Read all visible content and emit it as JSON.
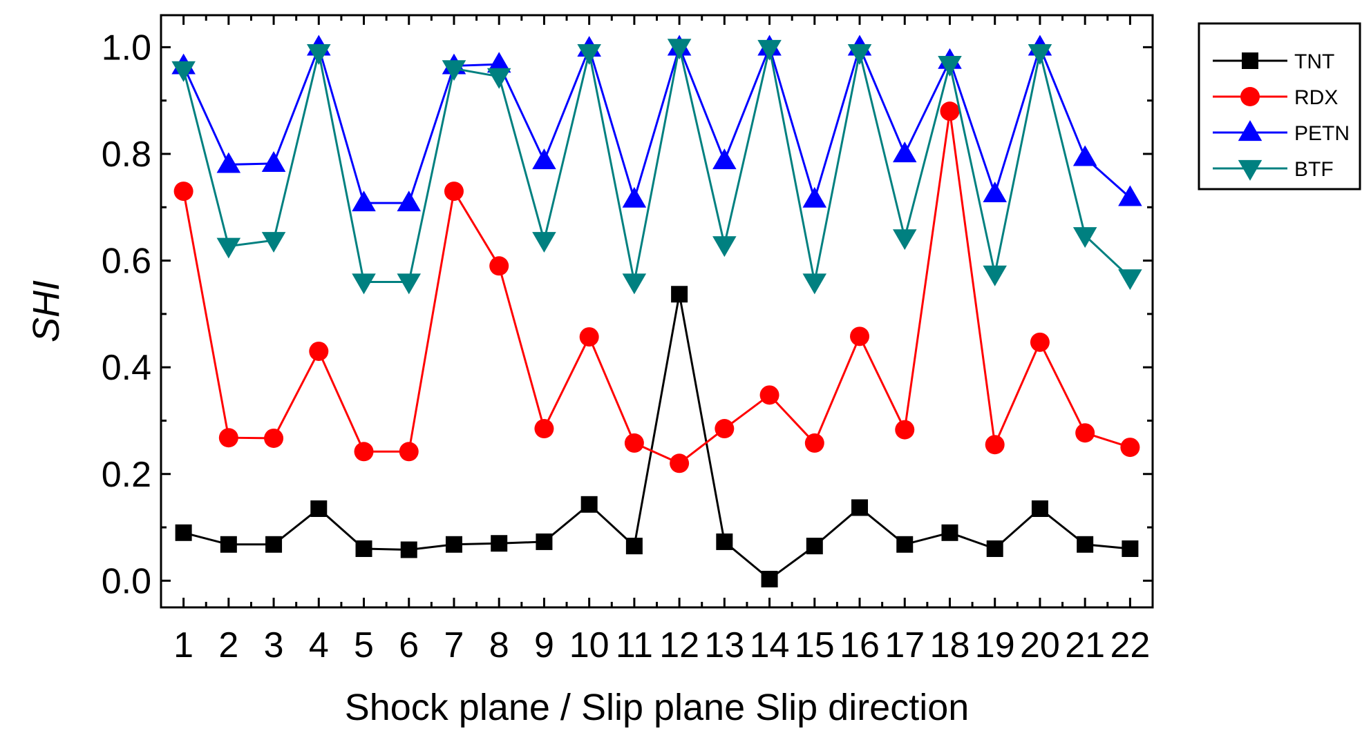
{
  "chart_data": {
    "type": "line",
    "xlabel": "Shock plane / Slip plane Slip direction",
    "ylabel": "SHI",
    "x": [
      1,
      2,
      3,
      4,
      5,
      6,
      7,
      8,
      9,
      10,
      11,
      12,
      13,
      14,
      15,
      16,
      17,
      18,
      19,
      20,
      21,
      22
    ],
    "xlim": [
      0.5,
      22.5
    ],
    "ylim": [
      -0.05,
      1.06
    ],
    "yticks": [
      0.0,
      0.2,
      0.4,
      0.6,
      0.8,
      1.0
    ],
    "ytick_labels": [
      "0.0",
      "0.2",
      "0.4",
      "0.6",
      "0.8",
      "1.0"
    ],
    "xtick_labels": [
      "1",
      "2",
      "3",
      "4",
      "5",
      "6",
      "7",
      "8",
      "9",
      "10",
      "11",
      "12",
      "13",
      "14",
      "15",
      "16",
      "17",
      "18",
      "19",
      "20",
      "21",
      "22"
    ],
    "grid": false,
    "legend_position": "top-right outside",
    "series": [
      {
        "name": "TNT",
        "color": "#000000",
        "marker": "square",
        "values": [
          0.09,
          0.068,
          0.068,
          0.135,
          0.06,
          0.058,
          0.068,
          0.07,
          0.073,
          0.143,
          0.065,
          0.537,
          0.073,
          0.003,
          0.065,
          0.137,
          0.068,
          0.09,
          0.06,
          0.135,
          0.068,
          0.06
        ]
      },
      {
        "name": "RDX",
        "color": "#ff0000",
        "marker": "circle",
        "values": [
          0.73,
          0.268,
          0.267,
          0.43,
          0.242,
          0.242,
          0.73,
          0.59,
          0.285,
          0.457,
          0.258,
          0.22,
          0.285,
          0.348,
          0.258,
          0.458,
          0.283,
          0.88,
          0.255,
          0.447,
          0.277,
          0.25
        ]
      },
      {
        "name": "PETN",
        "color": "#0000ff",
        "marker": "triangle-up",
        "values": [
          0.965,
          0.78,
          0.782,
          1.0,
          0.708,
          0.708,
          0.965,
          0.968,
          0.787,
          0.998,
          0.715,
          1.0,
          0.787,
          1.0,
          0.715,
          1.0,
          0.8,
          0.975,
          0.725,
          1.0,
          0.793,
          0.718
        ]
      },
      {
        "name": "BTF",
        "color": "#008080",
        "marker": "triangle-down",
        "values": [
          0.958,
          0.627,
          0.638,
          0.99,
          0.56,
          0.56,
          0.96,
          0.945,
          0.638,
          0.99,
          0.56,
          1.0,
          0.63,
          0.998,
          0.56,
          0.99,
          0.643,
          0.968,
          0.575,
          0.99,
          0.647,
          0.568
        ]
      }
    ]
  }
}
